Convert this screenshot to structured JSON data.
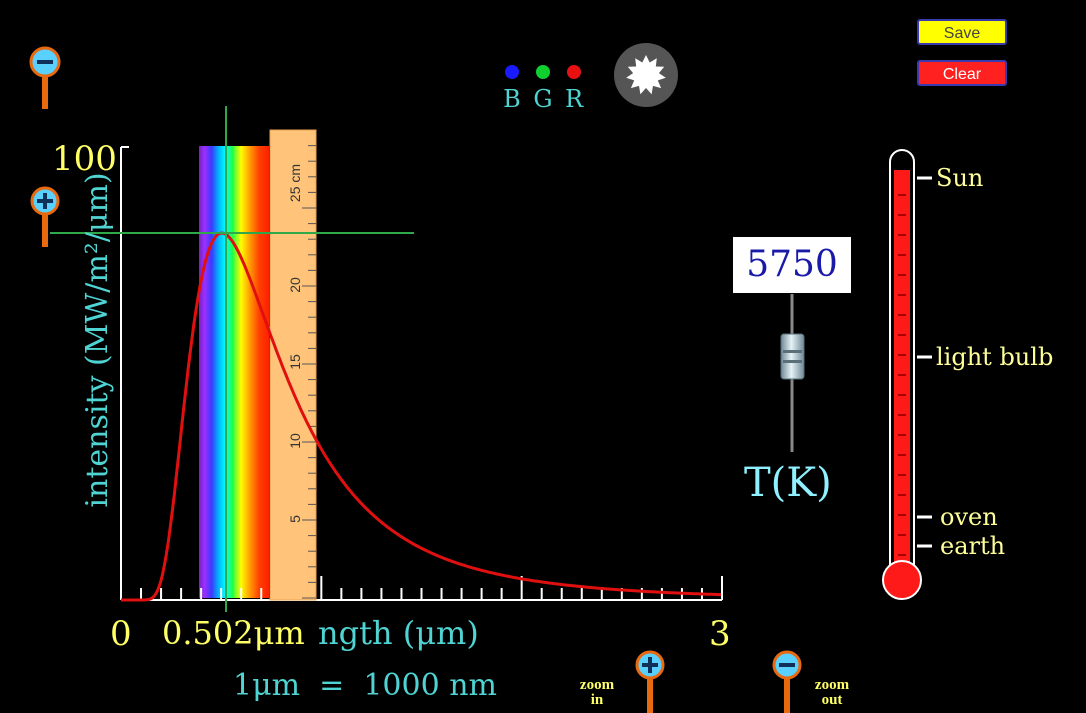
{
  "controls": {
    "save_label": "Save",
    "clear_label": "Clear"
  },
  "color_readout": {
    "b_label": "B",
    "g_label": "G",
    "r_label": "R"
  },
  "temperature": {
    "value": "5750",
    "unit_label": "T(K)"
  },
  "thermometer": {
    "markers": [
      "Sun",
      "light bulb",
      "oven",
      "earth"
    ]
  },
  "graph": {
    "y_axis_label": "intensity (MW/m²/μm)",
    "y_max_label": "100",
    "x_min_label": "0",
    "x_max_label": "3",
    "x_axis_label": "ngth (μm)",
    "peak_readout": "0.502μm",
    "conversion_note": "1μm  =  1000 nm"
  },
  "ruler": {
    "unit_label": "25 cm",
    "ticks": [
      "5",
      "10",
      "15",
      "20"
    ]
  },
  "zoom": {
    "in_label_1": "zoom",
    "in_label_2": "in",
    "out_label_1": "zoom",
    "out_label_2": "out"
  },
  "colors": {
    "background": "#000000",
    "curve": "#e01010",
    "crosshair": "#2fa84a",
    "axis_text": "#ffff66",
    "label_text": "#4fd3d3",
    "mercury": "#ff1a1a"
  }
}
